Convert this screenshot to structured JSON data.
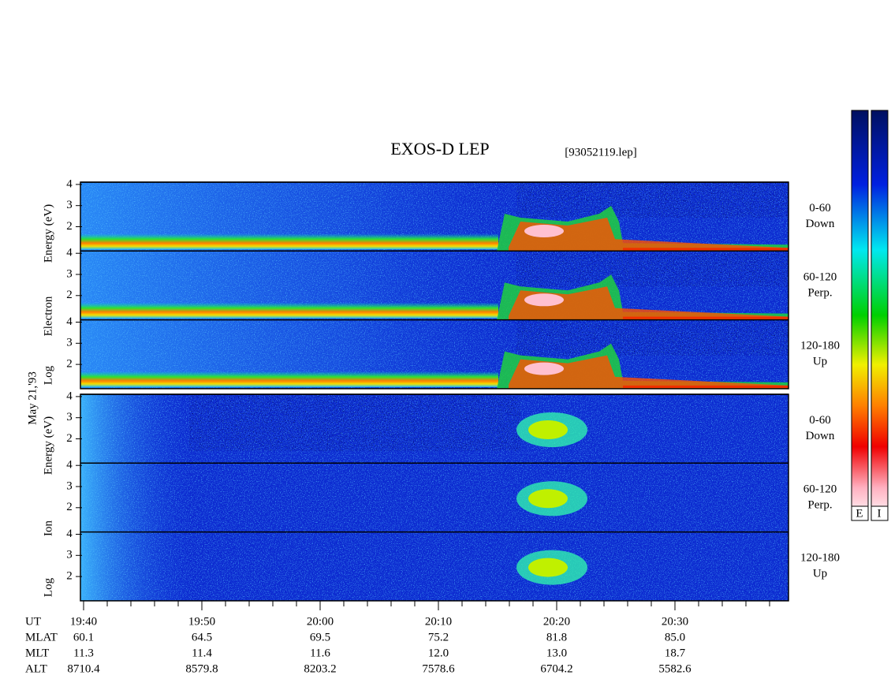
{
  "header": {
    "title": "EXOS-D LEP",
    "file": "[93052119.lep]"
  },
  "date_label": "May 21,'93",
  "electron": {
    "label_parts": [
      "Log",
      "Electron",
      "Energy (eV)"
    ],
    "channels": [
      {
        "angle": "0-60",
        "dir": "Down"
      },
      {
        "angle": "60-120",
        "dir": "Perp."
      },
      {
        "angle": "120-180",
        "dir": "Up"
      }
    ],
    "yticks": [
      2,
      3,
      4
    ]
  },
  "ion": {
    "label_parts": [
      "Log",
      "Ion",
      "Energy (eV)"
    ],
    "channels": [
      {
        "angle": "0-60",
        "dir": "Down"
      },
      {
        "angle": "60-120",
        "dir": "Perp."
      },
      {
        "angle": "120-180",
        "dir": "Up"
      }
    ],
    "yticks": [
      2,
      3,
      4
    ]
  },
  "colorbar": {
    "labels": [
      "E",
      "I"
    ]
  },
  "ephemeris": {
    "rows": [
      {
        "label": "UT",
        "values": [
          "19:40",
          "19:50",
          "20:00",
          "20:10",
          "20:20",
          "20:30"
        ]
      },
      {
        "label": "MLAT",
        "values": [
          "60.1",
          "64.5",
          "69.5",
          "75.2",
          "81.8",
          "85.0"
        ]
      },
      {
        "label": "MLT",
        "values": [
          "11.3",
          "11.4",
          "11.6",
          "12.0",
          "13.0",
          "18.7"
        ]
      },
      {
        "label": "ALT",
        "values": [
          "8710.4",
          "8579.8",
          "8203.2",
          "7578.6",
          "6704.2",
          "5582.6"
        ]
      }
    ]
  }
}
